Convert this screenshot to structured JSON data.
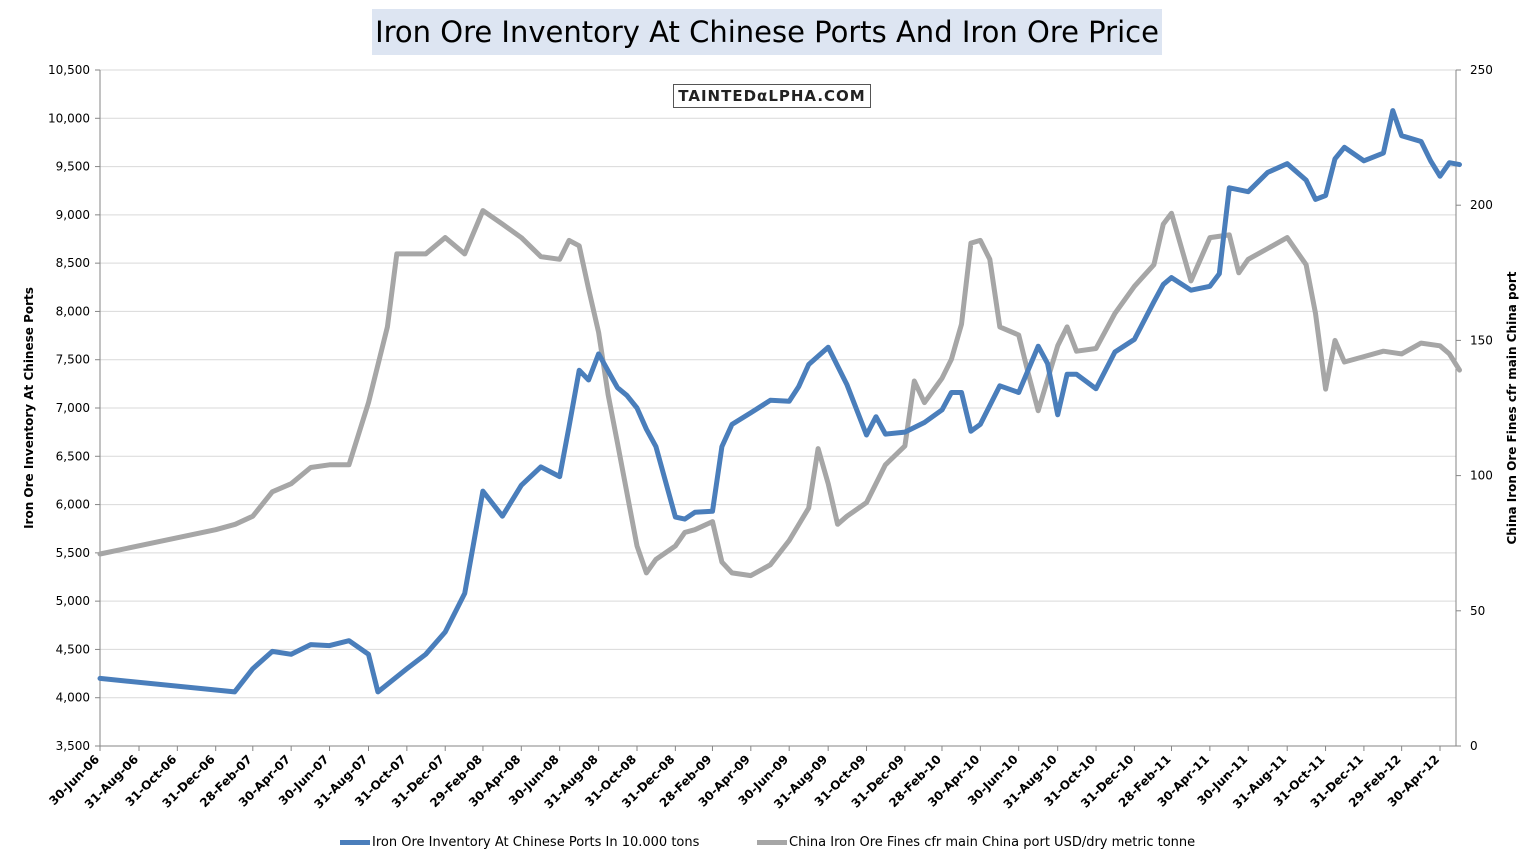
{
  "title": "Iron Ore Inventory At Chinese Ports And Iron Ore Price",
  "watermark": "TAINTEDαLPHA.COM",
  "chart_data": {
    "type": "line",
    "title": "Iron Ore Inventory At Chinese Ports And Iron Ore Price",
    "ylabel_left": "Iron Ore Inventory At Chinese Ports",
    "ylabel_right": "China Iron Ore Fines cfr main China port",
    "ylim_left": [
      3500,
      10500
    ],
    "ylim_right": [
      0,
      250
    ],
    "yticks_left": [
      "3,500",
      "4,000",
      "4,500",
      "5,000",
      "5,500",
      "6,000",
      "6,500",
      "7,000",
      "7,500",
      "8,000",
      "8,500",
      "9,000",
      "9,500",
      "10,000",
      "10,500"
    ],
    "yticks_right": [
      "0",
      "50",
      "100",
      "150",
      "200",
      "250"
    ],
    "x_tick_labels": [
      "30-Jun-06",
      "31-Aug-06",
      "31-Oct-06",
      "31-Dec-06",
      "28-Feb-07",
      "30-Apr-07",
      "30-Jun-07",
      "31-Aug-07",
      "31-Oct-07",
      "31-Dec-07",
      "29-Feb-08",
      "30-Apr-08",
      "30-Jun-08",
      "31-Aug-08",
      "31-Oct-08",
      "31-Dec-08",
      "28-Feb-09",
      "30-Apr-09",
      "30-Jun-09",
      "31-Aug-09",
      "31-Oct-09",
      "31-Dec-09",
      "28-Feb-10",
      "30-Apr-10",
      "30-Jun-10",
      "31-Aug-10",
      "31-Oct-10",
      "31-Dec-10",
      "28-Feb-11",
      "30-Apr-11",
      "30-Jun-11",
      "31-Aug-11",
      "31-Oct-11",
      "31-Dec-11",
      "29-Feb-12",
      "30-Apr-12"
    ],
    "grid": true,
    "legend_position": "bottom",
    "series": [
      {
        "name": "Iron Ore Inventory At Chinese Ports In 10.000 tons",
        "axis": "left",
        "color": "#4a7ebb",
        "points": [
          [
            "30-Jun-06",
            4200
          ],
          [
            "30-Jan-07",
            4060
          ],
          [
            "28-Feb-07",
            4300
          ],
          [
            "31-Mar-07",
            4480
          ],
          [
            "30-Apr-07",
            4450
          ],
          [
            "31-May-07",
            4550
          ],
          [
            "30-Jun-07",
            4540
          ],
          [
            "31-Jul-07",
            4590
          ],
          [
            "31-Aug-07",
            4450
          ],
          [
            "15-Sep-07",
            4060
          ],
          [
            "31-Oct-07",
            4300
          ],
          [
            "30-Nov-07",
            4450
          ],
          [
            "31-Dec-07",
            4680
          ],
          [
            "31-Jan-08",
            5080
          ],
          [
            "29-Feb-08",
            6140
          ],
          [
            "31-Mar-08",
            5880
          ],
          [
            "30-Apr-08",
            6200
          ],
          [
            "31-May-08",
            6390
          ],
          [
            "30-Jun-08",
            6290
          ],
          [
            "15-Jul-08",
            6810
          ],
          [
            "31-Jul-08",
            7390
          ],
          [
            "15-Aug-08",
            7290
          ],
          [
            "31-Aug-08",
            7560
          ],
          [
            "30-Sep-08",
            7210
          ],
          [
            "15-Oct-08",
            7130
          ],
          [
            "31-Oct-08",
            7000
          ],
          [
            "15-Nov-08",
            6780
          ],
          [
            "30-Nov-08",
            6600
          ],
          [
            "31-Dec-08",
            5870
          ],
          [
            "15-Jan-09",
            5850
          ],
          [
            "31-Jan-09",
            5920
          ],
          [
            "28-Feb-09",
            5930
          ],
          [
            "15-Mar-09",
            6600
          ],
          [
            "31-Mar-09",
            6830
          ],
          [
            "30-Apr-09",
            6950
          ],
          [
            "31-May-09",
            7080
          ],
          [
            "30-Jun-09",
            7070
          ],
          [
            "15-Jul-09",
            7220
          ],
          [
            "31-Jul-09",
            7450
          ],
          [
            "31-Aug-09",
            7630
          ],
          [
            "30-Sep-09",
            7240
          ],
          [
            "31-Oct-09",
            6720
          ],
          [
            "15-Nov-09",
            6910
          ],
          [
            "30-Nov-09",
            6730
          ],
          [
            "31-Dec-09",
            6750
          ],
          [
            "31-Jan-10",
            6850
          ],
          [
            "28-Feb-10",
            6980
          ],
          [
            "15-Mar-10",
            7160
          ],
          [
            "31-Mar-10",
            7160
          ],
          [
            "15-Apr-10",
            6760
          ],
          [
            "30-Apr-10",
            6830
          ],
          [
            "31-May-10",
            7230
          ],
          [
            "30-Jun-10",
            7160
          ],
          [
            "31-Jul-10",
            7640
          ],
          [
            "15-Aug-10",
            7460
          ],
          [
            "31-Aug-10",
            6930
          ],
          [
            "15-Sep-10",
            7350
          ],
          [
            "30-Sep-10",
            7350
          ],
          [
            "31-Oct-10",
            7200
          ],
          [
            "30-Nov-10",
            7580
          ],
          [
            "31-Dec-10",
            7710
          ],
          [
            "31-Jan-11",
            8100
          ],
          [
            "15-Feb-11",
            8280
          ],
          [
            "28-Feb-11",
            8350
          ],
          [
            "31-Mar-11",
            8220
          ],
          [
            "30-Apr-11",
            8260
          ],
          [
            "15-May-11",
            8390
          ],
          [
            "31-May-11",
            9280
          ],
          [
            "30-Jun-11",
            9240
          ],
          [
            "31-Jul-11",
            9440
          ],
          [
            "31-Aug-11",
            9530
          ],
          [
            "30-Sep-11",
            9360
          ],
          [
            "15-Oct-11",
            9160
          ],
          [
            "31-Oct-11",
            9200
          ],
          [
            "15-Nov-11",
            9580
          ],
          [
            "30-Nov-11",
            9700
          ],
          [
            "31-Dec-11",
            9560
          ],
          [
            "31-Jan-12",
            9640
          ],
          [
            "15-Feb-12",
            10080
          ],
          [
            "29-Feb-12",
            9820
          ],
          [
            "31-Mar-12",
            9760
          ],
          [
            "15-Apr-12",
            9560
          ],
          [
            "30-Apr-12",
            9400
          ],
          [
            "15-May-12",
            9540
          ],
          [
            "31-May-12",
            9520
          ]
        ]
      },
      {
        "name": "China Iron Ore Fines cfr main China port USD/dry metric tonne",
        "axis": "right",
        "color": "#a6a6a6",
        "points": [
          [
            "30-Jun-06",
            71
          ],
          [
            "31-Dec-06",
            80
          ],
          [
            "31-Jan-07",
            82
          ],
          [
            "28-Feb-07",
            85
          ],
          [
            "31-Mar-07",
            94
          ],
          [
            "30-Apr-07",
            97
          ],
          [
            "31-May-07",
            103
          ],
          [
            "30-Jun-07",
            104
          ],
          [
            "31-Jul-07",
            104
          ],
          [
            "31-Aug-07",
            127
          ],
          [
            "30-Sep-07",
            155
          ],
          [
            "15-Oct-07",
            182
          ],
          [
            "30-Nov-07",
            182
          ],
          [
            "31-Dec-07",
            188
          ],
          [
            "31-Jan-08",
            182
          ],
          [
            "29-Feb-08",
            198
          ],
          [
            "31-Mar-08",
            193
          ],
          [
            "30-Apr-08",
            188
          ],
          [
            "31-May-08",
            181
          ],
          [
            "30-Jun-08",
            180
          ],
          [
            "15-Jul-08",
            187
          ],
          [
            "31-Jul-08",
            185
          ],
          [
            "15-Aug-08",
            169
          ],
          [
            "31-Aug-08",
            153
          ],
          [
            "15-Sep-08",
            130
          ],
          [
            "30-Sep-08",
            112
          ],
          [
            "31-Oct-08",
            74
          ],
          [
            "15-Nov-08",
            64
          ],
          [
            "30-Nov-08",
            69
          ],
          [
            "31-Dec-08",
            74
          ],
          [
            "15-Jan-09",
            79
          ],
          [
            "31-Jan-09",
            80
          ],
          [
            "28-Feb-09",
            83
          ],
          [
            "15-Mar-09",
            68
          ],
          [
            "31-Mar-09",
            64
          ],
          [
            "30-Apr-09",
            63
          ],
          [
            "31-May-09",
            67
          ],
          [
            "30-Jun-09",
            76
          ],
          [
            "31-Jul-09",
            88
          ],
          [
            "15-Aug-09",
            110
          ],
          [
            "31-Aug-09",
            97
          ],
          [
            "15-Sep-09",
            82
          ],
          [
            "30-Sep-09",
            85
          ],
          [
            "31-Oct-09",
            90
          ],
          [
            "30-Nov-09",
            104
          ],
          [
            "31-Dec-09",
            111
          ],
          [
            "15-Jan-10",
            135
          ],
          [
            "31-Jan-10",
            127
          ],
          [
            "28-Feb-10",
            136
          ],
          [
            "15-Mar-10",
            143
          ],
          [
            "31-Mar-10",
            156
          ],
          [
            "15-Apr-10",
            186
          ],
          [
            "30-Apr-10",
            187
          ],
          [
            "15-May-10",
            180
          ],
          [
            "31-May-10",
            155
          ],
          [
            "30-Jun-10",
            152
          ],
          [
            "15-Jul-10",
            138
          ],
          [
            "31-Jul-10",
            124
          ],
          [
            "31-Aug-10",
            148
          ],
          [
            "15-Sep-10",
            155
          ],
          [
            "30-Sep-10",
            146
          ],
          [
            "31-Oct-10",
            147
          ],
          [
            "30-Nov-10",
            160
          ],
          [
            "31-Dec-10",
            170
          ],
          [
            "31-Jan-11",
            178
          ],
          [
            "15-Feb-11",
            193
          ],
          [
            "28-Feb-11",
            197
          ],
          [
            "31-Mar-11",
            172
          ],
          [
            "30-Apr-11",
            188
          ],
          [
            "31-May-11",
            189
          ],
          [
            "15-Jun-11",
            175
          ],
          [
            "30-Jun-11",
            180
          ],
          [
            "31-Jul-11",
            184
          ],
          [
            "31-Aug-11",
            188
          ],
          [
            "30-Sep-11",
            178
          ],
          [
            "15-Oct-11",
            160
          ],
          [
            "31-Oct-11",
            132
          ],
          [
            "15-Nov-11",
            150
          ],
          [
            "30-Nov-11",
            142
          ],
          [
            "31-Dec-11",
            144
          ],
          [
            "31-Jan-12",
            146
          ],
          [
            "29-Feb-12",
            145
          ],
          [
            "31-Mar-12",
            149
          ],
          [
            "30-Apr-12",
            148
          ],
          [
            "15-May-12",
            145
          ],
          [
            "31-May-12",
            139
          ]
        ]
      }
    ]
  }
}
